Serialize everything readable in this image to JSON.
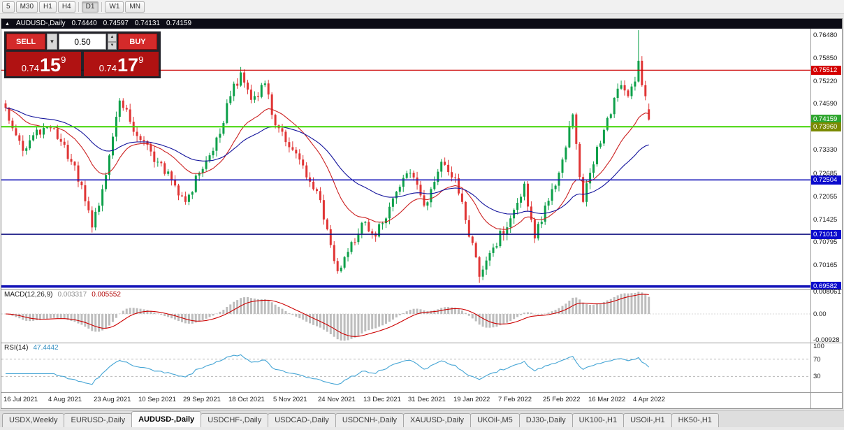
{
  "toolbar": {
    "buttons": [
      "5",
      "M30",
      "H1",
      "H4",
      "D1",
      "W1",
      "MN"
    ],
    "active": "D1",
    "separators_after": [
      "H4",
      "D1"
    ]
  },
  "chart": {
    "header": {
      "marker": "▲",
      "title": "AUDUSD-,Daily",
      "ohlc": [
        "0.74440",
        "0.74597",
        "0.74131",
        "0.74159"
      ]
    },
    "trade_panel": {
      "sell_label": "SELL",
      "buy_label": "BUY",
      "volume": "0.50",
      "sell_price": {
        "prefix": "0.74",
        "big": "15",
        "sup": "9"
      },
      "buy_price": {
        "prefix": "0.74",
        "big": "17",
        "sup": "9"
      }
    },
    "price_range": [
      0.695,
      0.7665
    ],
    "price_axis": {
      "ticks": [
        "0.76480",
        "0.75850",
        "0.75220",
        "0.74590",
        "0.73960",
        "0.73330",
        "0.72685",
        "0.72055",
        "0.71425",
        "0.70795",
        "0.70165"
      ],
      "badges": [
        {
          "text": "0.75512",
          "value": 0.75512,
          "bg": "#d40000"
        },
        {
          "text": "0.74159",
          "value": 0.74159,
          "bg": "#2ea52e"
        },
        {
          "text": "0.73960",
          "value": 0.7396,
          "bg": "#7a8a00"
        },
        {
          "text": "0.72504",
          "value": 0.72504,
          "bg": "#0b0bcc"
        },
        {
          "text": "0.71013",
          "value": 0.71013,
          "bg": "#0b0bcc"
        },
        {
          "text": "0.69582",
          "value": 0.69582,
          "bg": "#0b0bcc"
        }
      ]
    },
    "hlines": [
      {
        "value": 0.75512,
        "color": "#cc0000",
        "width": 1.3
      },
      {
        "value": 0.7396,
        "color": "#3fd400",
        "width": 2
      },
      {
        "value": 0.72504,
        "color": "#1414b8",
        "width": 1.6
      },
      {
        "value": 0.71013,
        "color": "#101080",
        "width": 1.6
      },
      {
        "value": 0.69582,
        "color": "#1414b8",
        "width": 3.5
      }
    ],
    "series": {
      "bars": 187,
      "up_color": "#0ea04a",
      "down_color": "#e03535",
      "ma_fast": {
        "period": 20,
        "color": "#cc2222"
      },
      "ma_slow": {
        "period": 45,
        "color": "#14149c"
      },
      "keyframes": [
        [
          0,
          0.7448
        ],
        [
          2,
          0.7392
        ],
        [
          5,
          0.733
        ],
        [
          9,
          0.7388
        ],
        [
          13,
          0.7392
        ],
        [
          16,
          0.7355
        ],
        [
          20,
          0.729
        ],
        [
          25,
          0.712
        ],
        [
          28,
          0.7225
        ],
        [
          33,
          0.7468
        ],
        [
          39,
          0.736
        ],
        [
          44,
          0.73
        ],
        [
          49,
          0.7235
        ],
        [
          52,
          0.719
        ],
        [
          56,
          0.727
        ],
        [
          60,
          0.733
        ],
        [
          65,
          0.748
        ],
        [
          68,
          0.7545
        ],
        [
          71,
          0.747
        ],
        [
          75,
          0.7515
        ],
        [
          78,
          0.74
        ],
        [
          82,
          0.734
        ],
        [
          86,
          0.729
        ],
        [
          89,
          0.7225
        ],
        [
          91,
          0.7195
        ],
        [
          93,
          0.7115
        ],
        [
          96,
          0.7
        ],
        [
          100,
          0.708
        ],
        [
          104,
          0.7135
        ],
        [
          107,
          0.7095
        ],
        [
          112,
          0.72
        ],
        [
          117,
          0.727
        ],
        [
          121,
          0.718
        ],
        [
          126,
          0.73
        ],
        [
          130,
          0.7255
        ],
        [
          133,
          0.714
        ],
        [
          137,
          0.6985
        ],
        [
          141,
          0.7065
        ],
        [
          146,
          0.7145
        ],
        [
          150,
          0.724
        ],
        [
          153,
          0.709
        ],
        [
          156,
          0.718
        ],
        [
          158,
          0.7225
        ],
        [
          160,
          0.727
        ],
        [
          164,
          0.743
        ],
        [
          167,
          0.719
        ],
        [
          169,
          0.727
        ],
        [
          174,
          0.742
        ],
        [
          178,
          0.751
        ],
        [
          180,
          0.748
        ],
        [
          182,
          0.752
        ],
        [
          183,
          0.7577
        ],
        [
          184,
          0.751
        ],
        [
          185,
          0.748
        ],
        [
          186,
          0.74159
        ]
      ],
      "overrides": {
        "25": {
          "l": 0.7106
        },
        "96": {
          "l": 0.6993
        },
        "137": {
          "l": 0.6968
        },
        "183": {
          "h": 0.7661
        },
        "186": {
          "o": 0.7444,
          "h": 0.74597,
          "l": 0.74131,
          "c": 0.74159
        }
      }
    },
    "macd": {
      "label": "MACD(12,26,9)",
      "value_main": "0.003317",
      "value_signal": "0.005552",
      "axis": [
        "0.008061",
        "0.00",
        "-0.00928"
      ],
      "hist_color": "#bdbdbd",
      "signal_color": "#cc0000"
    },
    "rsi": {
      "label": "RSI(14)",
      "value": "47.4442",
      "axis": [
        "100",
        "70",
        "30"
      ],
      "levels": [
        70,
        30
      ],
      "line_color": "#45a5d5"
    },
    "time_axis": {
      "bars_per_tick": 13,
      "dates": [
        "16 Jul 2021",
        "4 Aug 2021",
        "23 Aug 2021",
        "10 Sep 2021",
        "29 Sep 2021",
        "18 Oct 2021",
        "5 Nov 2021",
        "24 Nov 2021",
        "13 Dec 2021",
        "31 Dec 2021",
        "19 Jan 2022",
        "7 Feb 2022",
        "25 Feb 2022",
        "16 Mar 2022",
        "4 Apr 2022"
      ]
    }
  },
  "tabs": {
    "items": [
      "USDX,Weekly",
      "EURUSD-,Daily",
      "AUDUSD-,Daily",
      "USDCHF-,Daily",
      "USDCAD-,Daily",
      "USDCNH-,Daily",
      "XAUUSD-,Daily",
      "UKOil-,M5",
      "DJ30-,Daily",
      "UK100-,H1",
      "USOil-,H1",
      "HK50-,H1"
    ],
    "active_index": 2
  }
}
